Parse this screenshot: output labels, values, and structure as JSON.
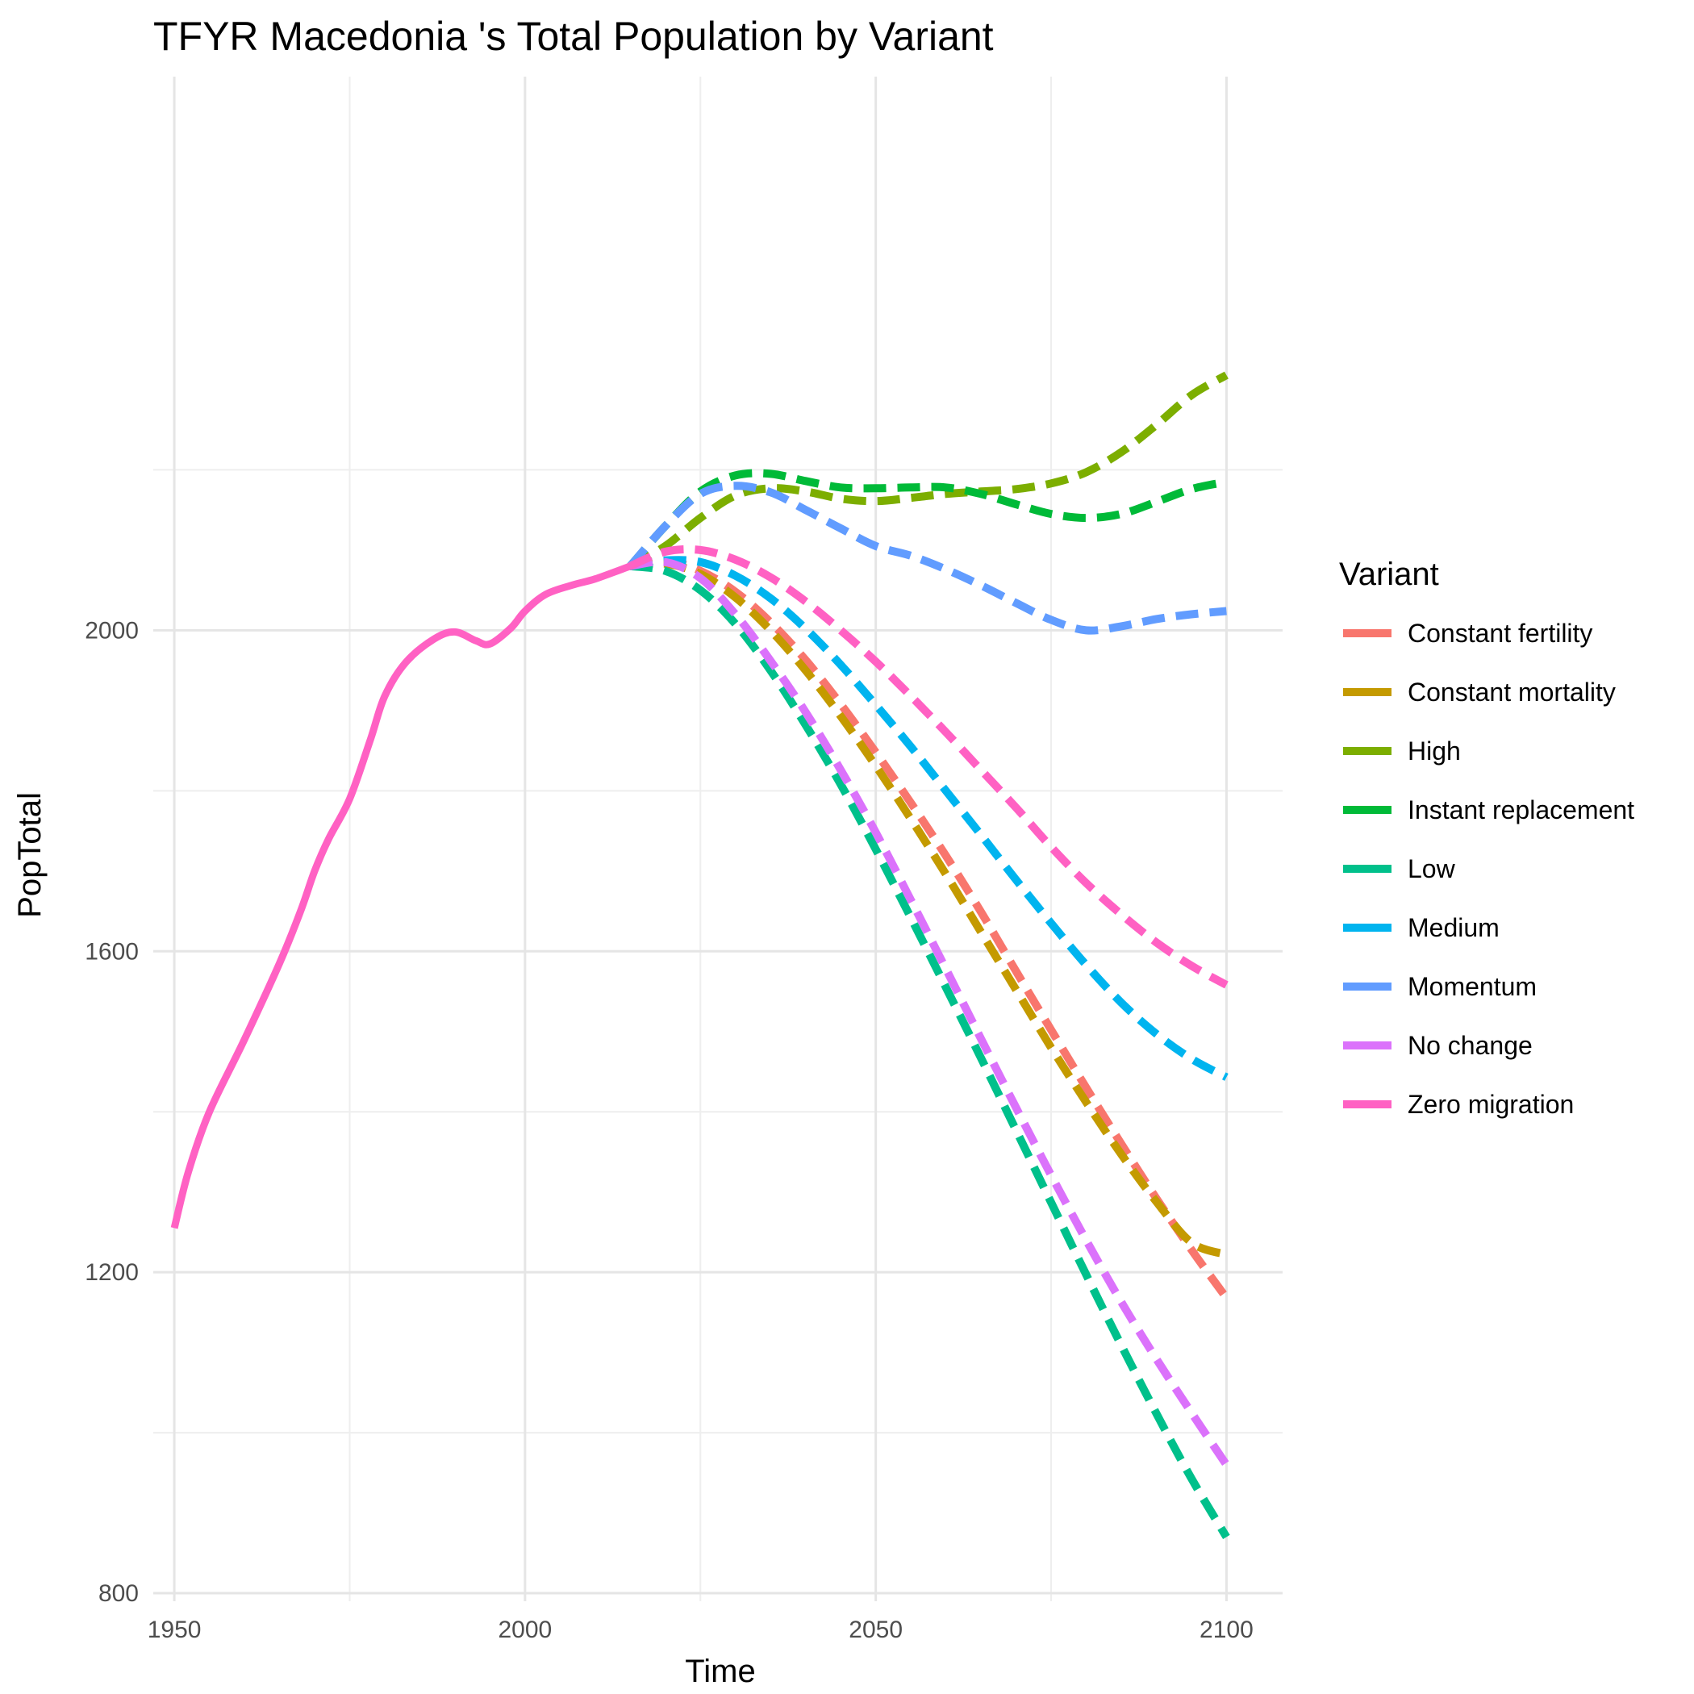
{
  "chart_data": {
    "type": "line",
    "title": "TFYR Macedonia 's Total Population by Variant",
    "xlabel": "Time",
    "ylabel": "PopTotal",
    "xlim": [
      1947,
      2108
    ],
    "ylim": [
      790,
      2690
    ],
    "x_ticks": [
      1950,
      2000,
      2050,
      2100
    ],
    "y_ticks": [
      800,
      1200,
      1600,
      2000
    ],
    "grid": true,
    "legend": {
      "title": "Variant",
      "position": "right"
    },
    "series": [
      {
        "name": "Constant fertility",
        "color": "#F8766D",
        "dash": true,
        "points": [
          [
            2015,
            2080
          ],
          [
            2020,
            2087
          ],
          [
            2025,
            2074
          ],
          [
            2030,
            2048
          ],
          [
            2035,
            2010
          ],
          [
            2040,
            1963
          ],
          [
            2045,
            1908
          ],
          [
            2050,
            1848
          ],
          [
            2055,
            1785
          ],
          [
            2060,
            1719
          ],
          [
            2065,
            1649
          ],
          [
            2070,
            1575
          ],
          [
            2075,
            1502
          ],
          [
            2080,
            1430
          ],
          [
            2085,
            1360
          ],
          [
            2090,
            1292
          ],
          [
            2095,
            1228
          ],
          [
            2100,
            1168
          ]
        ]
      },
      {
        "name": "Constant mortality",
        "color": "#C49A00",
        "dash": true,
        "points": [
          [
            2015,
            2080
          ],
          [
            2020,
            2083
          ],
          [
            2025,
            2070
          ],
          [
            2030,
            2041
          ],
          [
            2035,
            2000
          ],
          [
            2040,
            1950
          ],
          [
            2045,
            1893
          ],
          [
            2050,
            1831
          ],
          [
            2055,
            1765
          ],
          [
            2060,
            1696
          ],
          [
            2065,
            1624
          ],
          [
            2070,
            1552
          ],
          [
            2075,
            1480
          ],
          [
            2080,
            1412
          ],
          [
            2085,
            1347
          ],
          [
            2090,
            1288
          ],
          [
            2095,
            1237
          ],
          [
            2100,
            1222
          ]
        ]
      },
      {
        "name": "High",
        "color": "#7CAE00",
        "dash": true,
        "points": [
          [
            2015,
            2080
          ],
          [
            2020,
            2105
          ],
          [
            2025,
            2140
          ],
          [
            2030,
            2168
          ],
          [
            2035,
            2177
          ],
          [
            2040,
            2173
          ],
          [
            2045,
            2164
          ],
          [
            2050,
            2161
          ],
          [
            2055,
            2165
          ],
          [
            2060,
            2170
          ],
          [
            2065,
            2173
          ],
          [
            2070,
            2176
          ],
          [
            2075,
            2183
          ],
          [
            2080,
            2197
          ],
          [
            2085,
            2222
          ],
          [
            2090,
            2256
          ],
          [
            2095,
            2293
          ],
          [
            2100,
            2318
          ]
        ]
      },
      {
        "name": "Instant replacement",
        "color": "#00BA38",
        "dash": true,
        "points": [
          [
            2015,
            2080
          ],
          [
            2020,
            2130
          ],
          [
            2025,
            2173
          ],
          [
            2030,
            2193
          ],
          [
            2035,
            2195
          ],
          [
            2040,
            2186
          ],
          [
            2045,
            2178
          ],
          [
            2050,
            2177
          ],
          [
            2055,
            2178
          ],
          [
            2060,
            2178
          ],
          [
            2065,
            2170
          ],
          [
            2070,
            2157
          ],
          [
            2075,
            2145
          ],
          [
            2080,
            2140
          ],
          [
            2085,
            2145
          ],
          [
            2090,
            2160
          ],
          [
            2095,
            2176
          ],
          [
            2100,
            2185
          ]
        ]
      },
      {
        "name": "Low",
        "color": "#00C08B",
        "dash": true,
        "points": [
          [
            2015,
            2080
          ],
          [
            2020,
            2074
          ],
          [
            2025,
            2050
          ],
          [
            2030,
            2008
          ],
          [
            2035,
            1950
          ],
          [
            2040,
            1882
          ],
          [
            2045,
            1808
          ],
          [
            2050,
            1727
          ],
          [
            2055,
            1642
          ],
          [
            2060,
            1555
          ],
          [
            2065,
            1467
          ],
          [
            2070,
            1377
          ],
          [
            2075,
            1287
          ],
          [
            2080,
            1197
          ],
          [
            2085,
            1109
          ],
          [
            2090,
            1024
          ],
          [
            2095,
            943
          ],
          [
            2100,
            870
          ]
        ]
      },
      {
        "name": "Medium",
        "color": "#00B4EF",
        "dash": true,
        "points": [
          [
            2015,
            2080
          ],
          [
            2020,
            2087
          ],
          [
            2025,
            2085
          ],
          [
            2030,
            2068
          ],
          [
            2035,
            2040
          ],
          [
            2040,
            2002
          ],
          [
            2045,
            1957
          ],
          [
            2050,
            1907
          ],
          [
            2055,
            1855
          ],
          [
            2060,
            1800
          ],
          [
            2065,
            1745
          ],
          [
            2070,
            1689
          ],
          [
            2075,
            1635
          ],
          [
            2080,
            1583
          ],
          [
            2085,
            1536
          ],
          [
            2090,
            1497
          ],
          [
            2095,
            1466
          ],
          [
            2100,
            1443
          ]
        ]
      },
      {
        "name": "Momentum",
        "color": "#619CFF",
        "dash": true,
        "points": [
          [
            2015,
            2080
          ],
          [
            2020,
            2130
          ],
          [
            2025,
            2170
          ],
          [
            2030,
            2180
          ],
          [
            2035,
            2172
          ],
          [
            2040,
            2150
          ],
          [
            2045,
            2127
          ],
          [
            2050,
            2105
          ],
          [
            2055,
            2093
          ],
          [
            2060,
            2076
          ],
          [
            2065,
            2056
          ],
          [
            2070,
            2034
          ],
          [
            2075,
            2013
          ],
          [
            2080,
            2000
          ],
          [
            2085,
            2005
          ],
          [
            2090,
            2014
          ],
          [
            2095,
            2020
          ],
          [
            2100,
            2024
          ]
        ]
      },
      {
        "name": "No change",
        "color": "#DB72FB",
        "dash": true,
        "points": [
          [
            2015,
            2080
          ],
          [
            2020,
            2085
          ],
          [
            2025,
            2065
          ],
          [
            2030,
            2020
          ],
          [
            2035,
            1962
          ],
          [
            2040,
            1898
          ],
          [
            2045,
            1826
          ],
          [
            2050,
            1748
          ],
          [
            2055,
            1664
          ],
          [
            2060,
            1578
          ],
          [
            2065,
            1491
          ],
          [
            2070,
            1405
          ],
          [
            2075,
            1321
          ],
          [
            2080,
            1240
          ],
          [
            2085,
            1163
          ],
          [
            2090,
            1092
          ],
          [
            2095,
            1025
          ],
          [
            2100,
            960
          ]
        ]
      },
      {
        "name": "Zero migration",
        "color": "#FF61C3",
        "dash": true,
        "points": [
          [
            2015,
            2080
          ],
          [
            2020,
            2098
          ],
          [
            2025,
            2100
          ],
          [
            2030,
            2088
          ],
          [
            2035,
            2066
          ],
          [
            2040,
            2036
          ],
          [
            2045,
            2000
          ],
          [
            2050,
            1961
          ],
          [
            2055,
            1918
          ],
          [
            2060,
            1873
          ],
          [
            2065,
            1826
          ],
          [
            2070,
            1779
          ],
          [
            2075,
            1730
          ],
          [
            2080,
            1685
          ],
          [
            2085,
            1646
          ],
          [
            2090,
            1611
          ],
          [
            2095,
            1582
          ],
          [
            2100,
            1558
          ]
        ]
      },
      {
        "name": "Zero migration",
        "color": "#FF61C3",
        "dash": false,
        "legend": false,
        "points": [
          [
            1950,
            1255
          ],
          [
            1952,
            1325
          ],
          [
            1955,
            1400
          ],
          [
            1960,
            1490
          ],
          [
            1965,
            1585
          ],
          [
            1968,
            1650
          ],
          [
            1970,
            1700
          ],
          [
            1972,
            1740
          ],
          [
            1975,
            1790
          ],
          [
            1978,
            1865
          ],
          [
            1980,
            1918
          ],
          [
            1983,
            1960
          ],
          [
            1987,
            1989
          ],
          [
            1990,
            1998
          ],
          [
            1993,
            1987
          ],
          [
            1995,
            1983
          ],
          [
            1998,
            2003
          ],
          [
            2000,
            2024
          ],
          [
            2003,
            2045
          ],
          [
            2007,
            2057
          ],
          [
            2010,
            2064
          ],
          [
            2015,
            2080
          ]
        ]
      }
    ]
  }
}
